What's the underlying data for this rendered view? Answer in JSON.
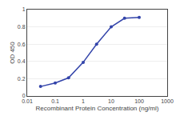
{
  "chart_data": {
    "type": "line",
    "x": [
      0.03,
      0.1,
      0.3,
      1,
      3,
      10,
      30,
      100
    ],
    "values": [
      0.11,
      0.15,
      0.21,
      0.39,
      0.6,
      0.8,
      0.9,
      0.91
    ],
    "color": "#3344aa",
    "marker": "circle",
    "xlabel": "Recombinant Protein Concentration (ng/ml)",
    "ylabel": "OD 450",
    "log": "x",
    "xlim": [
      0.01,
      1000
    ],
    "xticks": [
      0.01,
      0.1,
      1,
      10,
      100,
      1000
    ],
    "ylim": [
      0,
      1
    ],
    "yticks": [
      0,
      0.2,
      0.4,
      0.6,
      0.8,
      1
    ],
    "grid": "y"
  }
}
